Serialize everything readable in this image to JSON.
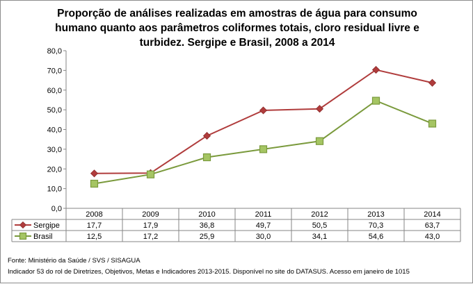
{
  "chart_data": {
    "type": "line",
    "title": "Proporção de análises realizadas em amostras de água para consumo humano quanto aos parâmetros coliformes totais, cloro residual livre e turbidez. Sergipe e Brasil, 2008 a 2014",
    "categories": [
      "2008",
      "2009",
      "2010",
      "2011",
      "2012",
      "2013",
      "2014"
    ],
    "ylim": [
      0,
      80
    ],
    "ytick_step": 10,
    "ytick_labels": [
      "0,0",
      "10,0",
      "20,0",
      "30,0",
      "40,0",
      "50,0",
      "60,0",
      "70,0",
      "80,0"
    ],
    "grid": false,
    "data_table": true,
    "series": [
      {
        "name": "Sergipe",
        "values": [
          17.7,
          17.9,
          36.8,
          49.7,
          50.5,
          70.3,
          63.7
        ],
        "labels": [
          "17,7",
          "17,9",
          "36,8",
          "49,7",
          "50,5",
          "70,3",
          "63,7"
        ],
        "color": "#b03c3c",
        "marker": "diamond"
      },
      {
        "name": "Brasil",
        "values": [
          12.5,
          17.2,
          25.9,
          30.0,
          34.1,
          54.6,
          43.0
        ],
        "labels": [
          "12,5",
          "17,2",
          "25,9",
          "30,0",
          "34,1",
          "54,6",
          "43,0"
        ],
        "color": "#7a9a3c",
        "fill": "#a5c563",
        "marker": "square"
      }
    ]
  },
  "source": {
    "line1": "Fonte: Ministério da Saúde / SVS / SISAGUA",
    "line2": "Indicador 53 do rol de Diretrizes, Objetivos, Metas e Indicadores 2013-2015. Disponível no site do DATASUS. Acesso em janeiro de 1015"
  }
}
